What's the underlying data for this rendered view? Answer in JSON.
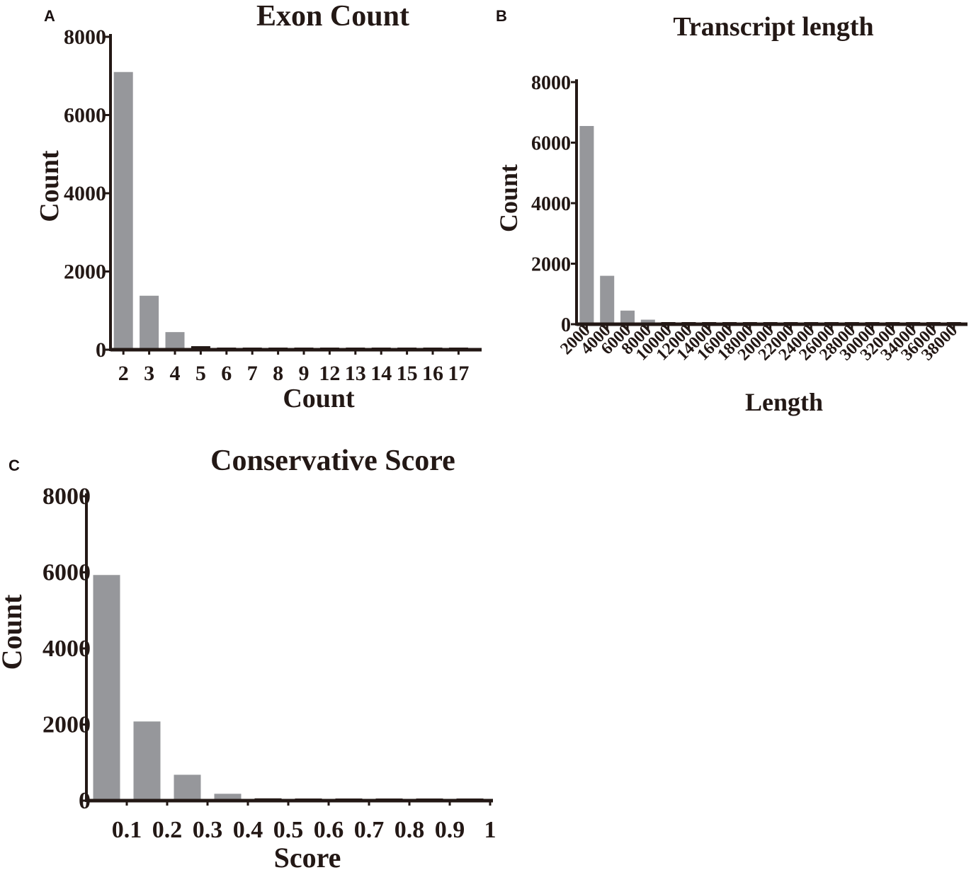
{
  "colors": {
    "bar": "#96979b",
    "axis": "#231815",
    "text": "#231815"
  },
  "chart_data": [
    {
      "panel": "A",
      "type": "bar",
      "title": "Exon Count",
      "xlabel": "Count",
      "ylabel": "Count",
      "ylim": [
        0,
        8000
      ],
      "yticks": [
        "0",
        "2000",
        "4000",
        "6000",
        "8000"
      ],
      "categories": [
        "2",
        "3",
        "4",
        "5",
        "6",
        "7",
        "8",
        "9",
        "12",
        "13",
        "14",
        "15",
        "16",
        "17"
      ],
      "values": [
        7100,
        1380,
        450,
        90,
        40,
        20,
        10,
        5,
        2,
        1,
        1,
        1,
        1,
        1
      ]
    },
    {
      "panel": "B",
      "type": "bar",
      "title": "Transcript  length",
      "xlabel": "Length",
      "ylabel": "Count",
      "ylim": [
        0,
        8000
      ],
      "yticks": [
        "0",
        "2000",
        "4000",
        "6000",
        "8000"
      ],
      "categories": [
        "2000",
        "4000",
        "6000",
        "8000",
        "10000",
        "12000",
        "14000",
        "16000",
        "18000",
        "20000",
        "22000",
        "24000",
        "26000",
        "28000",
        "30000",
        "32000",
        "34000",
        "36000",
        "38000"
      ],
      "values": [
        6550,
        1600,
        450,
        150,
        60,
        30,
        20,
        10,
        8,
        5,
        3,
        2,
        2,
        1,
        1,
        1,
        1,
        1,
        1
      ]
    },
    {
      "panel": "C",
      "type": "bar",
      "title": "Conservative Score",
      "xlabel": "Score",
      "ylabel": "Count",
      "ylim": [
        0,
        8000
      ],
      "yticks": [
        "0",
        "2000",
        "4000",
        "6000",
        "8000"
      ],
      "categories": [
        "0.1",
        "0.2",
        "0.3",
        "0.4",
        "0.5",
        "0.6",
        "0.7",
        "0.8",
        "0.9",
        "1"
      ],
      "values": [
        5930,
        2080,
        680,
        180,
        60,
        30,
        20,
        10,
        5,
        2
      ]
    }
  ]
}
